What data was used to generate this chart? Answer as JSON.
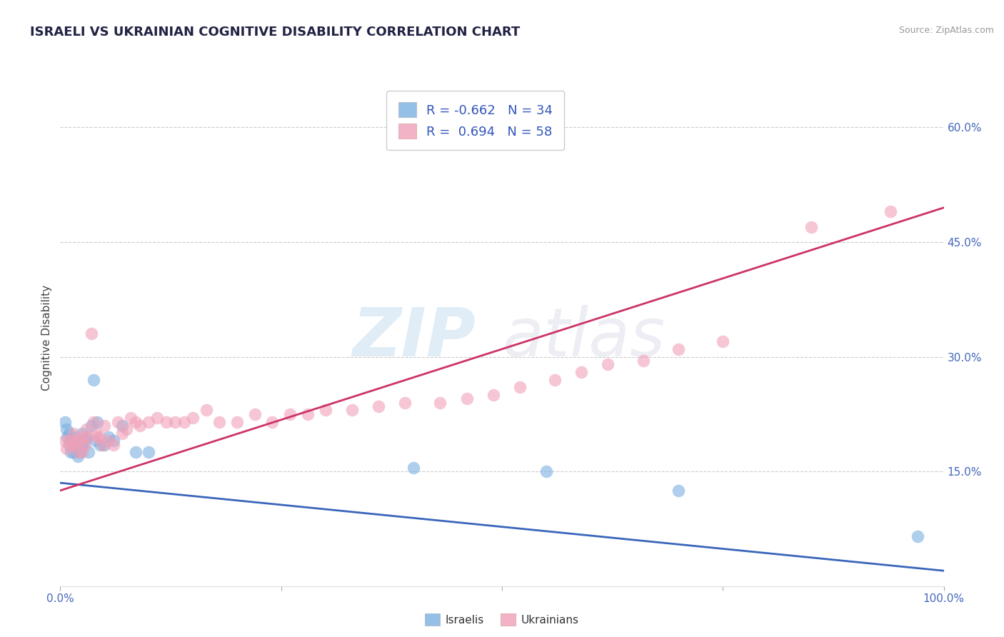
{
  "title": "ISRAELI VS UKRAINIAN COGNITIVE DISABILITY CORRELATION CHART",
  "source": "Source: ZipAtlas.com",
  "ylabel": "Cognitive Disability",
  "xlim": [
    0.0,
    1.0
  ],
  "ylim": [
    0.0,
    0.65
  ],
  "xticks": [
    0.0,
    0.25,
    0.5,
    0.75,
    1.0
  ],
  "xticklabels": [
    "0.0%",
    "",
    "",
    "",
    "100.0%"
  ],
  "ytick_positions": [
    0.15,
    0.3,
    0.45,
    0.6
  ],
  "ytick_labels": [
    "15.0%",
    "30.0%",
    "45.0%",
    "60.0%"
  ],
  "grid_color": "#cccccc",
  "background_color": "#ffffff",
  "israeli_color": "#7ab0e0",
  "ukrainian_color": "#f0a0b8",
  "israeli_line_color": "#3a66bb",
  "ukrainian_line_color": "#cc3366",
  "legend_R_israeli": "-0.662",
  "legend_N_israeli": "34",
  "legend_R_ukrainian": "0.694",
  "legend_N_ukrainian": "58",
  "watermark_zip": "ZIP",
  "watermark_atlas": "atlas",
  "israelis_x": [
    0.005,
    0.007,
    0.008,
    0.01,
    0.01,
    0.012,
    0.013,
    0.015,
    0.015,
    0.017,
    0.018,
    0.02,
    0.02,
    0.022,
    0.025,
    0.025,
    0.028,
    0.03,
    0.032,
    0.035,
    0.038,
    0.04,
    0.042,
    0.045,
    0.05,
    0.055,
    0.06,
    0.07,
    0.085,
    0.1,
    0.4,
    0.55,
    0.7,
    0.97
  ],
  "israelis_y": [
    0.215,
    0.205,
    0.195,
    0.185,
    0.2,
    0.175,
    0.19,
    0.185,
    0.175,
    0.195,
    0.185,
    0.18,
    0.17,
    0.175,
    0.2,
    0.185,
    0.19,
    0.195,
    0.175,
    0.21,
    0.27,
    0.19,
    0.215,
    0.185,
    0.185,
    0.195,
    0.19,
    0.21,
    0.175,
    0.175,
    0.155,
    0.15,
    0.125,
    0.065
  ],
  "ukrainians_x": [
    0.005,
    0.007,
    0.01,
    0.012,
    0.015,
    0.015,
    0.018,
    0.02,
    0.022,
    0.025,
    0.025,
    0.028,
    0.03,
    0.03,
    0.035,
    0.038,
    0.04,
    0.042,
    0.045,
    0.048,
    0.05,
    0.055,
    0.06,
    0.065,
    0.07,
    0.075,
    0.08,
    0.085,
    0.09,
    0.1,
    0.11,
    0.12,
    0.13,
    0.14,
    0.15,
    0.165,
    0.18,
    0.2,
    0.22,
    0.24,
    0.26,
    0.28,
    0.3,
    0.33,
    0.36,
    0.39,
    0.43,
    0.46,
    0.49,
    0.52,
    0.56,
    0.59,
    0.62,
    0.66,
    0.7,
    0.75,
    0.85,
    0.94
  ],
  "ukrainians_y": [
    0.19,
    0.18,
    0.19,
    0.185,
    0.185,
    0.2,
    0.19,
    0.175,
    0.19,
    0.195,
    0.175,
    0.185,
    0.205,
    0.195,
    0.33,
    0.215,
    0.2,
    0.195,
    0.195,
    0.185,
    0.21,
    0.19,
    0.185,
    0.215,
    0.2,
    0.205,
    0.22,
    0.215,
    0.21,
    0.215,
    0.22,
    0.215,
    0.215,
    0.215,
    0.22,
    0.23,
    0.215,
    0.215,
    0.225,
    0.215,
    0.225,
    0.225,
    0.23,
    0.23,
    0.235,
    0.24,
    0.24,
    0.245,
    0.25,
    0.26,
    0.27,
    0.28,
    0.29,
    0.295,
    0.31,
    0.32,
    0.47,
    0.49
  ]
}
